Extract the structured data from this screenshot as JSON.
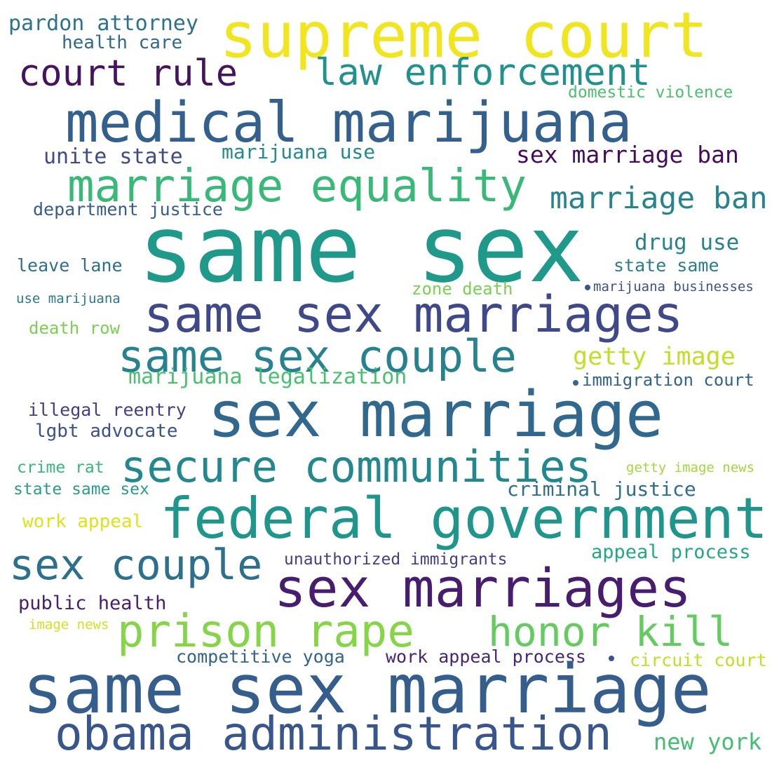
{
  "words": [
    {
      "text": "supreme court",
      "color": "#f0e51e"
    },
    {
      "text": "pardon attorney",
      "color": "#2c718e"
    },
    {
      "text": "health care",
      "color": "#2f6a8d"
    },
    {
      "text": "court rule",
      "color": "#46145f"
    },
    {
      "text": "law enforcement",
      "color": "#21918c"
    },
    {
      "text": "domestic violence",
      "color": "#4ac26d"
    },
    {
      "text": "medical marijuana",
      "color": "#33608d"
    },
    {
      "text": "unite state",
      "color": "#3e4a89"
    },
    {
      "text": "marijuana use",
      "color": "#238a8d"
    },
    {
      "text": "sex marriage ban",
      "color": "#460b5e"
    },
    {
      "text": "marriage equality",
      "color": "#38b977"
    },
    {
      "text": "marriage ban",
      "color": "#25848e"
    },
    {
      "text": "department justice",
      "color": "#365d8d"
    },
    {
      "text": "same sex",
      "color": "#1f9a8a"
    },
    {
      "text": "drug use",
      "color": "#26828e"
    },
    {
      "text": "leave lane",
      "color": "#2e6f8e"
    },
    {
      "text": "state same",
      "color": "#287d8e"
    },
    {
      "text": "zone death",
      "color": "#7ad151"
    },
    {
      "text": "marijuana businesses",
      "color": "#3b528b"
    },
    {
      "text": "use marijuana",
      "color": "#2a788e"
    },
    {
      "text": "same sex marriages",
      "color": "#3f4889"
    },
    {
      "text": "same sex couple",
      "color": "#26828e"
    },
    {
      "text": "getty image",
      "color": "#c0df25"
    },
    {
      "text": "death row",
      "color": "#7ad151"
    },
    {
      "text": "marijuana legalization",
      "color": "#48c16e"
    },
    {
      "text": "immigration court",
      "color": "#33638d"
    },
    {
      "text": "sex marriage",
      "color": "#31688e"
    },
    {
      "text": "illegal reentry",
      "color": "#433e85"
    },
    {
      "text": "lgbt advocate",
      "color": "#3b528b"
    },
    {
      "text": "secure communities",
      "color": "#23888e"
    },
    {
      "text": "crime rat",
      "color": "#35b779"
    },
    {
      "text": "getty image news",
      "color": "#a0da39"
    },
    {
      "text": "state same sex",
      "color": "#2a9c8a"
    },
    {
      "text": "criminal justice",
      "color": "#2e6e8e"
    },
    {
      "text": "federal government",
      "color": "#1f968b"
    },
    {
      "text": "work appeal",
      "color": "#dde318"
    },
    {
      "text": "sex couple",
      "color": "#2d708e"
    },
    {
      "text": "unauthorized immigrants",
      "color": "#424086"
    },
    {
      "text": "appeal process",
      "color": "#22a884"
    },
    {
      "text": "sex marriages",
      "color": "#481d6f"
    },
    {
      "text": "public health",
      "color": "#481f70"
    },
    {
      "text": "image news",
      "color": "#d2e21b"
    },
    {
      "text": "prison rape",
      "color": "#86d549"
    },
    {
      "text": "honor kill",
      "color": "#63cb5f"
    },
    {
      "text": "competitive yoga",
      "color": "#33638d"
    },
    {
      "text": "work appeal process",
      "color": "#482576"
    },
    {
      "text": "circuit court",
      "color": "#c2df23"
    },
    {
      "text": "same sex marriage",
      "color": "#355e8d"
    },
    {
      "text": "obama administration",
      "color": "#39568c"
    },
    {
      "text": "new york",
      "color": "#42be71"
    }
  ],
  "dots": [
    {
      "color": "#3b528b"
    },
    {
      "color": "#31688e"
    },
    {
      "color": "#3b528b"
    }
  ]
}
